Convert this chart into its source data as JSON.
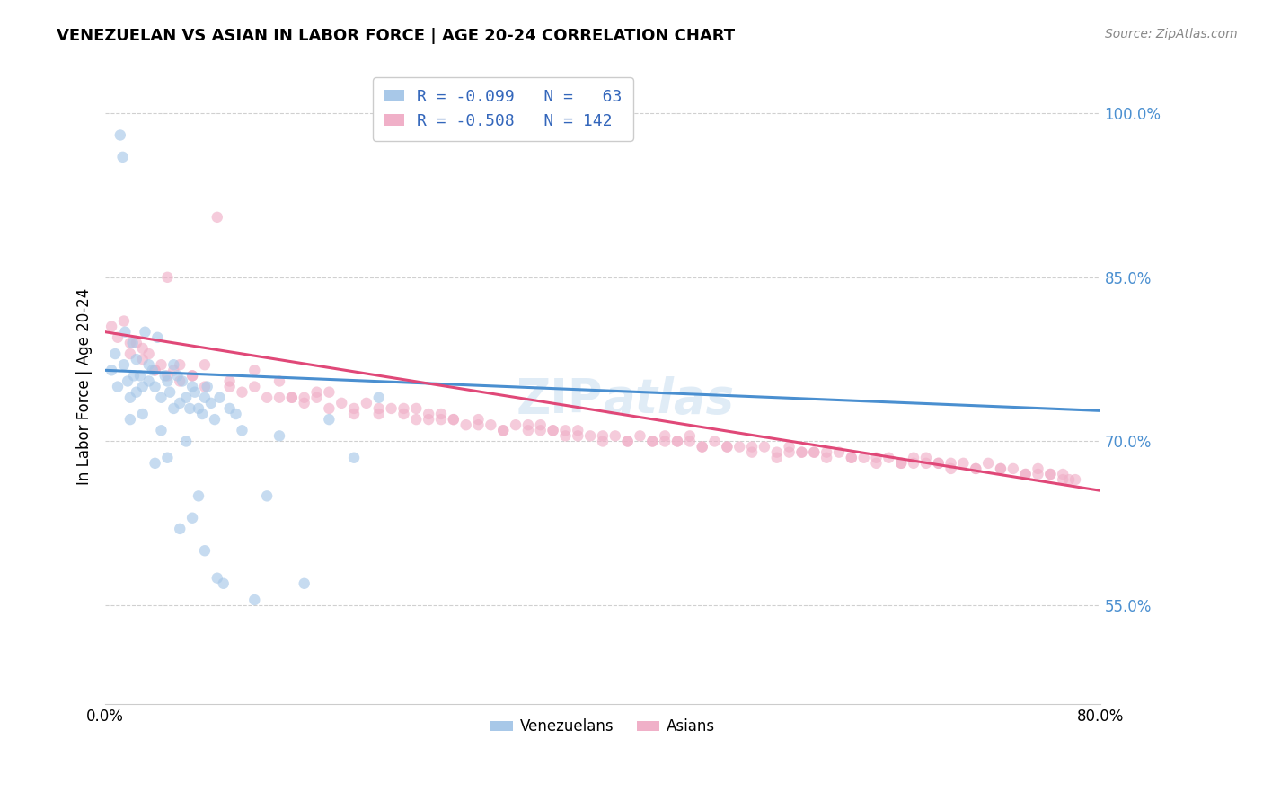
{
  "title": "VENEZUELAN VS ASIAN IN LABOR FORCE | AGE 20-24 CORRELATION CHART",
  "source": "Source: ZipAtlas.com",
  "ylabel": "In Labor Force | Age 20-24",
  "xlim": [
    0.0,
    80.0
  ],
  "ylim": [
    46.0,
    104.0
  ],
  "ytick_vals": [
    55.0,
    70.0,
    85.0,
    100.0
  ],
  "ytick_labels": [
    "55.0%",
    "70.0%",
    "85.0%",
    "100.0%"
  ],
  "venezuelan_color": "#a8c8e8",
  "asian_color": "#f0b0c8",
  "venezuelan_line_color": "#4a8fd0",
  "asian_line_color": "#e04878",
  "watermark": "ZipAtlas",
  "background_color": "#ffffff",
  "grid_color": "#d0d0d0",
  "marker_size": 80,
  "marker_alpha": 0.65,
  "line_width": 2.2,
  "venezuelan_x": [
    0.5,
    0.8,
    1.0,
    1.2,
    1.4,
    1.5,
    1.6,
    1.8,
    2.0,
    2.0,
    2.2,
    2.3,
    2.5,
    2.5,
    2.8,
    3.0,
    3.0,
    3.2,
    3.5,
    3.5,
    3.8,
    4.0,
    4.0,
    4.2,
    4.5,
    4.5,
    4.8,
    5.0,
    5.0,
    5.2,
    5.5,
    5.5,
    5.8,
    6.0,
    6.0,
    6.2,
    6.5,
    6.5,
    6.8,
    7.0,
    7.0,
    7.2,
    7.5,
    7.5,
    7.8,
    8.0,
    8.0,
    8.2,
    8.5,
    8.8,
    9.0,
    9.2,
    9.5,
    10.0,
    10.5,
    11.0,
    12.0,
    13.0,
    14.0,
    16.0,
    18.0,
    20.0,
    22.0
  ],
  "venezuelan_y": [
    76.5,
    78.0,
    75.0,
    98.0,
    96.0,
    77.0,
    80.0,
    75.5,
    74.0,
    72.0,
    79.0,
    76.0,
    74.5,
    77.5,
    76.0,
    75.0,
    72.5,
    80.0,
    77.0,
    75.5,
    76.5,
    75.0,
    68.0,
    79.5,
    74.0,
    71.0,
    76.0,
    75.5,
    68.5,
    74.5,
    73.0,
    77.0,
    76.0,
    73.5,
    62.0,
    75.5,
    74.0,
    70.0,
    73.0,
    75.0,
    63.0,
    74.5,
    73.0,
    65.0,
    72.5,
    74.0,
    60.0,
    75.0,
    73.5,
    72.0,
    57.5,
    74.0,
    57.0,
    73.0,
    72.5,
    71.0,
    55.5,
    65.0,
    70.5,
    57.0,
    72.0,
    68.5,
    74.0
  ],
  "asian_x": [
    0.5,
    1.0,
    1.5,
    2.0,
    2.5,
    3.0,
    3.5,
    4.0,
    4.5,
    5.0,
    5.5,
    6.0,
    7.0,
    8.0,
    9.0,
    10.0,
    11.0,
    12.0,
    13.0,
    14.0,
    15.0,
    16.0,
    17.0,
    18.0,
    19.0,
    20.0,
    21.0,
    22.0,
    23.0,
    24.0,
    25.0,
    26.0,
    27.0,
    28.0,
    29.0,
    30.0,
    31.0,
    32.0,
    33.0,
    34.0,
    35.0,
    36.0,
    37.0,
    38.0,
    39.0,
    40.0,
    41.0,
    42.0,
    43.0,
    44.0,
    45.0,
    46.0,
    47.0,
    48.0,
    49.0,
    50.0,
    51.0,
    52.0,
    53.0,
    54.0,
    55.0,
    56.0,
    57.0,
    58.0,
    59.0,
    60.0,
    61.0,
    62.0,
    63.0,
    64.0,
    65.0,
    66.0,
    67.0,
    68.0,
    69.0,
    70.0,
    71.0,
    72.0,
    73.0,
    74.0,
    75.0,
    76.0,
    77.0,
    78.0,
    3.0,
    6.0,
    10.0,
    15.0,
    20.0,
    25.0,
    30.0,
    35.0,
    40.0,
    45.0,
    50.0,
    55.0,
    60.0,
    65.0,
    70.0,
    75.0,
    5.0,
    12.0,
    22.0,
    32.0,
    42.0,
    52.0,
    62.0,
    72.0,
    8.0,
    18.0,
    28.0,
    38.0,
    48.0,
    58.0,
    68.0,
    77.0,
    2.0,
    14.0,
    26.0,
    36.0,
    46.0,
    56.0,
    66.0,
    76.0,
    4.0,
    16.0,
    24.0,
    34.0,
    44.0,
    54.0,
    64.0,
    74.0,
    7.0,
    17.0,
    27.0,
    37.0,
    47.0,
    57.0,
    67.0,
    77.5
  ],
  "asian_y": [
    80.5,
    79.5,
    81.0,
    78.0,
    79.0,
    77.5,
    78.0,
    76.5,
    77.0,
    76.0,
    76.5,
    75.5,
    76.0,
    75.0,
    90.5,
    75.5,
    74.5,
    75.0,
    74.0,
    75.5,
    74.0,
    73.5,
    74.0,
    73.0,
    73.5,
    73.0,
    73.5,
    72.5,
    73.0,
    72.5,
    73.0,
    72.0,
    72.5,
    72.0,
    71.5,
    72.0,
    71.5,
    71.0,
    71.5,
    71.0,
    71.5,
    71.0,
    70.5,
    71.0,
    70.5,
    70.0,
    70.5,
    70.0,
    70.5,
    70.0,
    70.5,
    70.0,
    70.0,
    69.5,
    70.0,
    69.5,
    69.5,
    69.0,
    69.5,
    69.0,
    69.5,
    69.0,
    69.0,
    68.5,
    69.0,
    68.5,
    68.5,
    68.0,
    68.5,
    68.0,
    68.5,
    68.0,
    68.0,
    67.5,
    68.0,
    67.5,
    68.0,
    67.5,
    67.5,
    67.0,
    67.5,
    67.0,
    67.0,
    66.5,
    78.5,
    77.0,
    75.0,
    74.0,
    72.5,
    72.0,
    71.5,
    71.0,
    70.5,
    70.0,
    69.5,
    69.0,
    68.5,
    68.0,
    67.5,
    67.0,
    85.0,
    76.5,
    73.0,
    71.0,
    70.0,
    69.5,
    68.5,
    67.5,
    77.0,
    74.5,
    72.0,
    70.5,
    69.5,
    69.0,
    68.0,
    66.5,
    79.0,
    74.0,
    72.5,
    71.0,
    70.0,
    69.0,
    68.5,
    67.0,
    76.5,
    74.0,
    73.0,
    71.5,
    70.0,
    68.5,
    68.0,
    67.0,
    76.0,
    74.5,
    72.0,
    71.0,
    70.5,
    69.0,
    68.0,
    66.5
  ],
  "ven_line_x0": 0.0,
  "ven_line_x1": 80.0,
  "ven_line_y0": 76.5,
  "ven_line_y1": 72.8,
  "asi_line_x0": 0.0,
  "asi_line_x1": 80.0,
  "asi_line_y0": 80.0,
  "asi_line_y1": 65.5
}
